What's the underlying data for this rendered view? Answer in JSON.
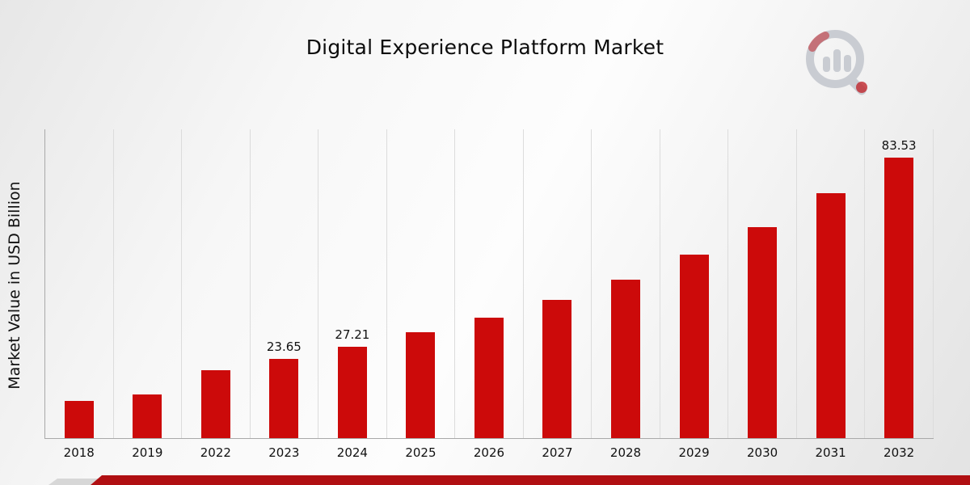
{
  "page": {
    "title": "Digital Experience Platform Market"
  },
  "chart_data": {
    "type": "bar",
    "title": "Digital Experience Platform Market",
    "xlabel": "",
    "ylabel": "Market Value in USD Billion",
    "categories": [
      "2018",
      "2019",
      "2022",
      "2023",
      "2024",
      "2025",
      "2026",
      "2027",
      "2028",
      "2029",
      "2030",
      "2031",
      "2032"
    ],
    "values": [
      11.0,
      13.0,
      20.3,
      23.65,
      27.21,
      31.5,
      35.9,
      41.3,
      47.3,
      54.6,
      62.9,
      72.9,
      83.53
    ],
    "data_labels": [
      "",
      "",
      "",
      "23.65",
      "27.21",
      "",
      "",
      "",
      "",
      "",
      "",
      "",
      "83.53"
    ],
    "ylim": [
      0,
      92
    ],
    "grid": "vertical",
    "legend": "none"
  },
  "colors": {
    "bar": "#cc0a0a",
    "bottom_strip": "#b00f12",
    "gridline": "#dcdcdc",
    "logo_gray": "#c9ccd2",
    "logo_red": "#c0272d"
  }
}
